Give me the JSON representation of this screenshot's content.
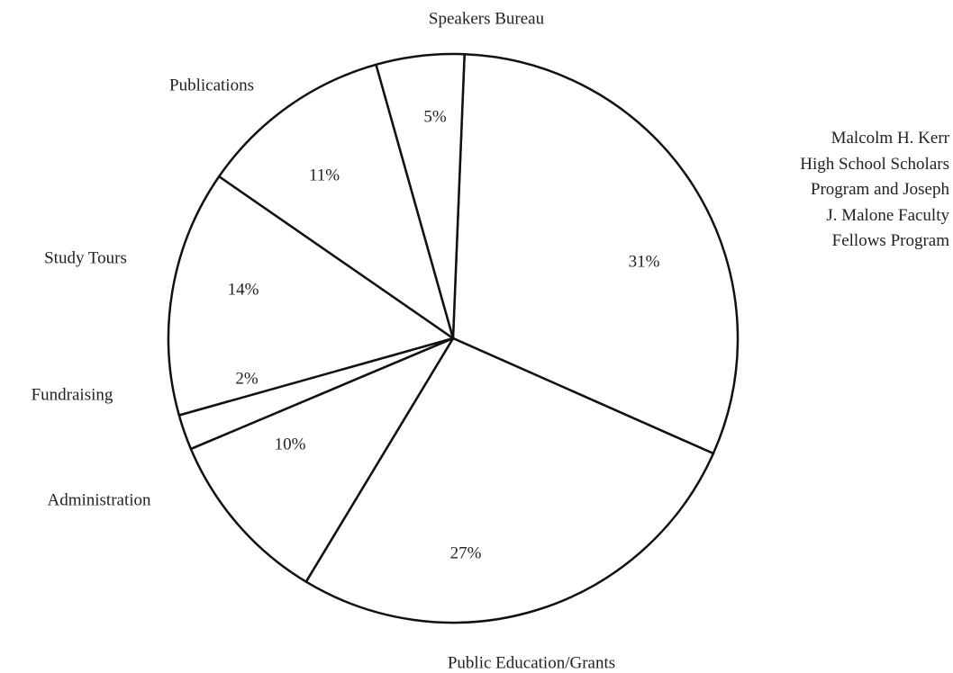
{
  "chart_data": {
    "type": "pie",
    "categories": [
      "Malcolm H. Kerr\nHigh School Scholars\nProgram and Joseph\nJ. Malone Faculty\nFellows Program",
      "Public Education/Grants",
      "Administration",
      "Fundraising",
      "Study Tours",
      "Publications",
      "Speakers Bureau"
    ],
    "values": [
      31,
      27,
      10,
      2,
      14,
      11,
      5
    ],
    "value_labels": [
      "31%",
      "27%",
      "10%",
      "2%",
      "14%",
      "11%",
      "5%"
    ],
    "color": "#ffffff"
  }
}
